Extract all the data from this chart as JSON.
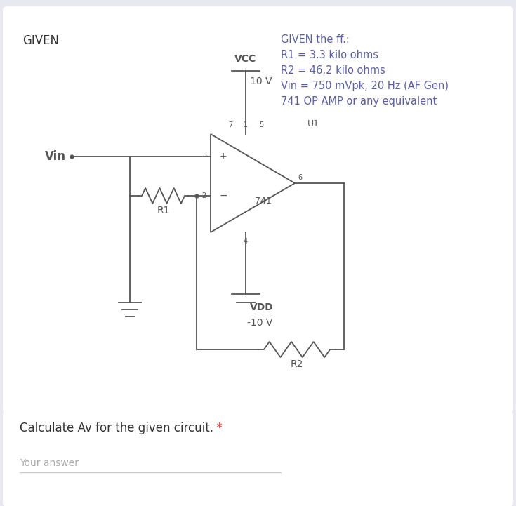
{
  "bg_outer": "#e8e8f0",
  "bg_card_top": "#ffffff",
  "bg_card_bottom": "#ffffff",
  "given_label": "GIVEN",
  "given_label_color": "#333333",
  "given_label_fontsize": 12,
  "info_lines": [
    "GIVEN the ff.:",
    "R1 = 3.3 kilo ohms",
    "R2 = 46.2 kilo ohms",
    "Vin = 750 mVpk, 20 Hz (AF Gen)",
    "741 OP AMP or any equivalent"
  ],
  "info_color": "#5b5ea6",
  "info_fontsize": 10.5,
  "question_text": "Calculate Av for the given circuit.",
  "question_star": " *",
  "question_fontsize": 12,
  "question_color": "#333333",
  "question_star_color": "#e53935",
  "answer_label": "Your answer",
  "answer_fontsize": 10,
  "answer_color": "#aaaaaa",
  "line_color": "#555555",
  "line_width": 1.3
}
